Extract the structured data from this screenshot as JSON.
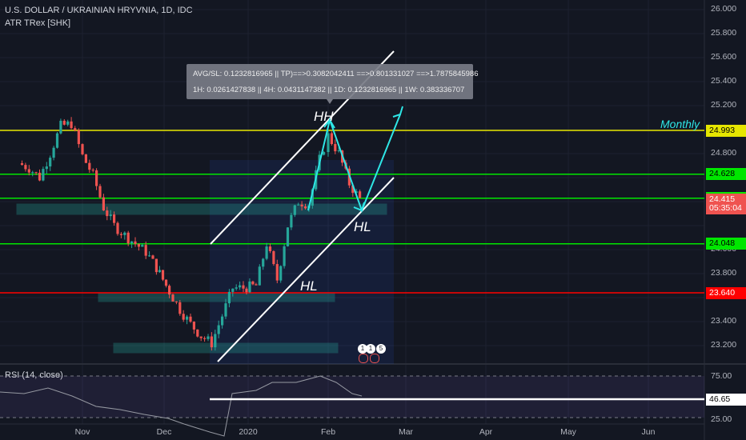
{
  "header": {
    "symbol": "U.S. DOLLAR / UKRAINIAN HRYVNIA, 1D, IDC",
    "indicator": "ATR TRex [SHK]",
    "rsi_label": "RSI (14, close)"
  },
  "tooltip": {
    "line1": "AVG/SL: 0.1232816965 || TP)==>0.3082042411 ==>0.801331027 ==>1.7875845986",
    "line2": "1H: 0.0261427838 || 4H: 0.0431147382 || 1D: 0.1232816965 || 1W: 0.383336707"
  },
  "annotations": {
    "hh": "HH",
    "hl_upper": "HL",
    "hl_lower": "HL",
    "monthly": "Monthly",
    "badge1": "1",
    "badge2": "1",
    "badge3": "5"
  },
  "colors": {
    "background": "#131722",
    "up": "#26a69a",
    "down": "#ef5350",
    "green_level": "#00e600",
    "yellow_level": "#e6e600",
    "red_level": "#ff0000",
    "arrow": "#2ee6e6",
    "rsi": "#7e57c2"
  },
  "chart_data": {
    "type": "candlestick",
    "title": "U.S. DOLLAR / UKRAINIAN HRYVNIA, 1D, IDC",
    "y_ticks": [
      "26.000",
      "25.800",
      "25.600",
      "25.400",
      "25.200",
      "24.800",
      "24.600",
      "24.400",
      "24.000",
      "23.800",
      "23.600",
      "23.400",
      "23.200"
    ],
    "x_ticks": [
      "Nov",
      "Dec",
      "2020",
      "Feb",
      "Mar",
      "Apr",
      "May",
      "Jun"
    ],
    "ylim": [
      23.1,
      26.05
    ],
    "levels": [
      {
        "label": "24.993",
        "value": 24.993,
        "color": "yellow"
      },
      {
        "label": "24.628",
        "value": 24.628,
        "color": "green"
      },
      {
        "label": "24.428",
        "value": 24.428,
        "color": "green"
      },
      {
        "label": "24.415",
        "value": 24.415,
        "color": "red-tag"
      },
      {
        "label": "05:35:04",
        "value": 24.345,
        "color": "red-tag"
      },
      {
        "label": "24.048",
        "value": 24.048,
        "color": "green"
      },
      {
        "label": "23.640",
        "value": 23.64,
        "color": "red"
      }
    ],
    "close_path": [
      {
        "x": "Oct-08",
        "y": 24.72
      },
      {
        "x": "Oct-12",
        "y": 24.68
      },
      {
        "x": "Oct-16",
        "y": 24.6
      },
      {
        "x": "Oct-20",
        "y": 24.8
      },
      {
        "x": "Oct-24",
        "y": 25.03
      },
      {
        "x": "Oct-28",
        "y": 25.05
      },
      {
        "x": "Nov-01",
        "y": 24.78
      },
      {
        "x": "Nov-05",
        "y": 24.62
      },
      {
        "x": "Nov-09",
        "y": 24.35
      },
      {
        "x": "Nov-13",
        "y": 24.2
      },
      {
        "x": "Nov-17",
        "y": 24.12
      },
      {
        "x": "Nov-21",
        "y": 24.05
      },
      {
        "x": "Nov-25",
        "y": 23.98
      },
      {
        "x": "Nov-29",
        "y": 23.85
      },
      {
        "x": "Dec-03",
        "y": 23.65
      },
      {
        "x": "Dec-07",
        "y": 23.5
      },
      {
        "x": "Dec-11",
        "y": 23.38
      },
      {
        "x": "Dec-15",
        "y": 23.28
      },
      {
        "x": "Dec-19",
        "y": 23.22
      },
      {
        "x": "Dec-23",
        "y": 23.45
      },
      {
        "x": "Dec-27",
        "y": 23.68
      },
      {
        "x": "Dec-31",
        "y": 23.68
      },
      {
        "x": "Jan-04",
        "y": 23.7
      },
      {
        "x": "Jan-08",
        "y": 24.05
      },
      {
        "x": "Jan-12",
        "y": 23.75
      },
      {
        "x": "Jan-16",
        "y": 24.2
      },
      {
        "x": "Jan-20",
        "y": 24.4
      },
      {
        "x": "Jan-24",
        "y": 24.38
      },
      {
        "x": "Jan-28",
        "y": 24.75
      },
      {
        "x": "Feb-01",
        "y": 24.95
      },
      {
        "x": "Feb-05",
        "y": 24.8
      },
      {
        "x": "Feb-09",
        "y": 24.55
      },
      {
        "x": "Feb-13",
        "y": 24.42
      }
    ],
    "rsi": {
      "label": "RSI (14, close)",
      "levels": [
        "75.00",
        "25.00"
      ],
      "last_value": "46.65",
      "ylim": [
        25,
        75
      ]
    }
  }
}
